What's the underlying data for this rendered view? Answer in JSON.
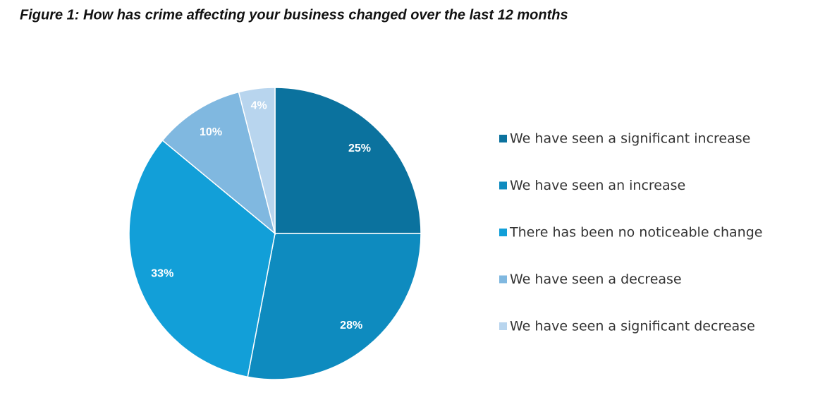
{
  "chart_data": {
    "type": "pie",
    "title": "Figure 1: How has crime affecting your business changed over the last 12 months",
    "categories": [
      "We have seen a significant increase",
      "We have seen an increase",
      "There has been no noticeable change",
      "We have seen a decrease",
      "We have seen a significant decrease"
    ],
    "values": [
      25,
      28,
      33,
      10,
      4
    ],
    "value_labels": [
      "25%",
      "28%",
      "33%",
      "10%",
      "4%"
    ],
    "colors": [
      "#0b729e",
      "#0e8bbf",
      "#129fd8",
      "#80b8e0",
      "#b8d5ee"
    ],
    "legend": "right"
  }
}
